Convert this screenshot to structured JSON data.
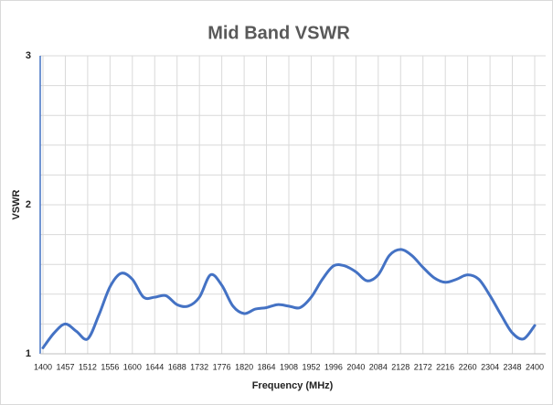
{
  "chart_data": {
    "type": "line",
    "title": "Mid Band VSWR",
    "x_label": "Frequency (MHz)",
    "y_label": "VSWR",
    "categories": [
      "1400",
      null,
      "1457",
      null,
      "1512",
      null,
      "1556",
      null,
      "1600",
      null,
      "1644",
      null,
      "1688",
      null,
      "1732",
      null,
      "1776",
      null,
      "1820",
      null,
      "1864",
      null,
      "1908",
      null,
      "1952",
      null,
      "1996",
      null,
      "2040",
      null,
      "2084",
      null,
      "2128",
      null,
      "2172",
      null,
      "2216",
      null,
      "2260",
      null,
      "2304",
      null,
      "2348",
      null,
      "2400"
    ],
    "values": [
      1.04,
      1.14,
      1.2,
      1.15,
      1.1,
      1.26,
      1.45,
      1.54,
      1.5,
      1.38,
      1.38,
      1.39,
      1.33,
      1.32,
      1.38,
      1.53,
      1.46,
      1.32,
      1.27,
      1.3,
      1.31,
      1.33,
      1.32,
      1.31,
      1.38,
      1.5,
      1.59,
      1.59,
      1.55,
      1.49,
      1.53,
      1.66,
      1.7,
      1.66,
      1.58,
      1.51,
      1.48,
      1.5,
      1.53,
      1.5,
      1.39,
      1.26,
      1.14,
      1.1,
      1.19
    ],
    "color": "#4472c4",
    "ylim": [
      1,
      3
    ],
    "yticks": [
      1,
      2,
      3
    ],
    "y_minor_ticks": [
      1.2,
      1.4,
      1.6,
      1.8,
      2.2,
      2.4,
      2.6,
      2.8
    ],
    "grid": true
  }
}
